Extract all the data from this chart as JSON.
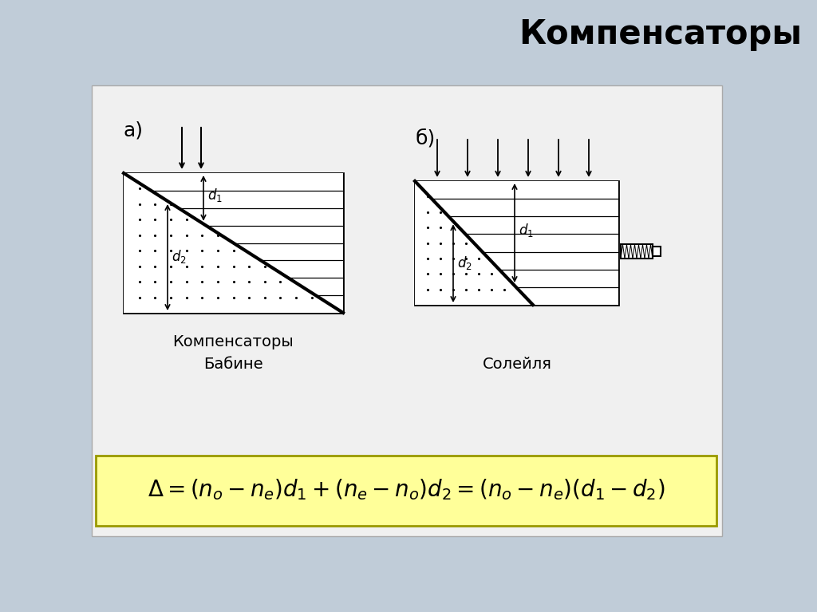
{
  "title": "Компенсаторы",
  "bg_color": "#c0ccd8",
  "white_panel": "#f0f0f0",
  "formula_bg": "#ffff99",
  "formula_border": "#999900",
  "label_a": "а)",
  "label_b": "б)",
  "caption_center": "Компенсаторы",
  "caption_babine": "Бабине",
  "caption_soleil": "Солейля"
}
